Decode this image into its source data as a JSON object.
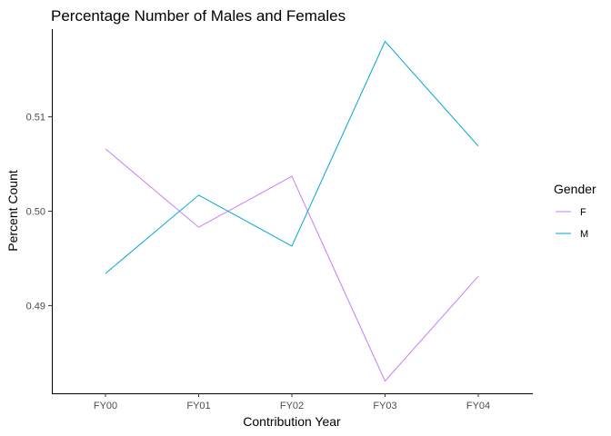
{
  "chart_data": {
    "type": "line",
    "title": "Percentage Number of Males and Females",
    "xlabel": "Contribution Year",
    "ylabel": "Percent Count",
    "categories": [
      "FY00",
      "FY01",
      "FY02",
      "FY03",
      "FY04"
    ],
    "yticks": [
      0.49,
      0.5,
      0.51
    ],
    "ytick_labels": [
      "0.49",
      "0.50",
      "0.51"
    ],
    "ylim": [
      0.4807,
      0.5193
    ],
    "grid": false,
    "legend": {
      "title": "Gender",
      "placement": "right"
    },
    "series": [
      {
        "name": "F",
        "color": "#C77CFF",
        "values": [
          0.5066,
          0.4983,
          0.5037,
          0.482,
          0.4931
        ]
      },
      {
        "name": "M",
        "color": "#00A9D6",
        "values": [
          0.4934,
          0.5017,
          0.4963,
          0.518,
          0.5069
        ]
      }
    ]
  }
}
